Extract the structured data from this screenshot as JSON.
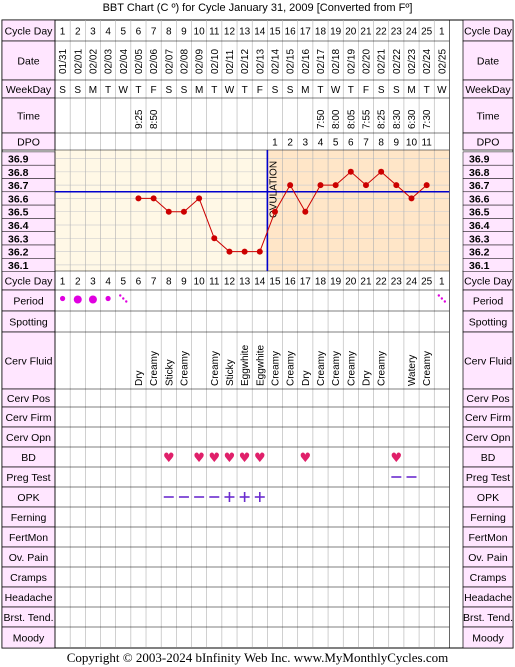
{
  "title": "BBT Chart (C º) for Cycle January 31, 2009  [Converted from Fº]",
  "footer": "Copyright © 2003-2024 bInfinity Web Inc.    www.MyMonthlyCycles.com",
  "colors": {
    "pink_cell": "#ffe6ff",
    "chart_bg_pre": "#fff8e6",
    "chart_bg_post": "#ffe6c8",
    "grid": "#d0d0d0",
    "line": "#cc0000",
    "coverline": "#0000cc",
    "ovulation": "#0000cc",
    "period_dot": "#e000e0",
    "bd_heart": "#e0206a",
    "opk": "#6a2ccf"
  },
  "row_labels": [
    "Cycle Day",
    "Date",
    "WeekDay",
    "Time",
    "DPO",
    "Cycle Day",
    "Period",
    "Spotting",
    "Cerv Fluid",
    "Cerv Pos",
    "Cerv Firm",
    "Cerv Opn",
    "BD",
    "Preg Test",
    "OPK",
    "Ferning",
    "FertMon",
    "Ov. Pain",
    "Cramps",
    "Headache",
    "Brst. Tend.",
    "Moody"
  ],
  "cycle_days": [
    "1",
    "2",
    "3",
    "4",
    "5",
    "6",
    "7",
    "8",
    "9",
    "10",
    "11",
    "12",
    "13",
    "14",
    "15",
    "16",
    "17",
    "18",
    "19",
    "20",
    "21",
    "22",
    "23",
    "24",
    "25",
    "1"
  ],
  "dates": [
    "01/31",
    "02/01",
    "02/02",
    "02/03",
    "02/04",
    "02/05",
    "02/06",
    "02/07",
    "02/08",
    "02/09",
    "02/10",
    "02/11",
    "02/12",
    "02/13",
    "02/14",
    "02/15",
    "02/16",
    "02/17",
    "02/18",
    "02/19",
    "02/20",
    "02/21",
    "02/22",
    "02/23",
    "02/24",
    "02/25"
  ],
  "weekdays": [
    "S",
    "S",
    "M",
    "T",
    "W",
    "T",
    "F",
    "S",
    "S",
    "M",
    "T",
    "W",
    "T",
    "F",
    "S",
    "S",
    "M",
    "T",
    "W",
    "T",
    "F",
    "S",
    "S",
    "M",
    "T",
    "W"
  ],
  "times": [
    "",
    "",
    "",
    "",
    "",
    "9:25",
    "8:50",
    "",
    "",
    "",
    "",
    "",
    "",
    "",
    "",
    "",
    "",
    "7:50",
    "8:00",
    "8:05",
    "7:55",
    "8:25",
    "8:30",
    "6:30",
    "7:30",
    ""
  ],
  "dpo": [
    "",
    "",
    "",
    "",
    "",
    "",
    "",
    "",
    "",
    "",
    "",
    "",
    "",
    "",
    "1",
    "2",
    "3",
    "4",
    "5",
    "6",
    "7",
    "8",
    "9",
    "10",
    "11",
    ""
  ],
  "temp_labels": [
    "36.9",
    "36.8",
    "36.7",
    "36.6",
    "36.5",
    "36.4",
    "36.3",
    "36.2",
    "36.1"
  ],
  "ovulation_label": "OVULATION",
  "chart_data": {
    "type": "line",
    "x": [
      6,
      7,
      8,
      9,
      10,
      11,
      12,
      13,
      14,
      15,
      16,
      17,
      18,
      19,
      20,
      21,
      22,
      23,
      24,
      25
    ],
    "y": [
      36.6,
      36.6,
      36.5,
      36.5,
      36.6,
      36.3,
      36.2,
      36.2,
      36.2,
      36.5,
      36.7,
      36.5,
      36.7,
      36.7,
      36.8,
      36.7,
      36.8,
      36.7,
      36.6,
      36.7
    ],
    "ylim": [
      36.05,
      36.95
    ],
    "coverline": 36.65,
    "ovulation_day": 14
  },
  "period": [
    "dot",
    "dot-large",
    "dot-large",
    "dot",
    "spotting",
    "",
    "",
    "",
    "",
    "",
    "",
    "",
    "",
    "",
    "",
    "",
    "",
    "",
    "",
    "",
    "",
    "",
    "",
    "",
    "",
    "spotting"
  ],
  "cerv_fluid": [
    "",
    "",
    "",
    "",
    "",
    "Dry",
    "Creamy",
    "Sticky",
    "Creamy",
    "",
    "Creamy",
    "Sticky",
    "Eggwhite",
    "Eggwhite",
    "Creamy",
    "Creamy",
    "Dry",
    "Creamy",
    "Creamy",
    "Creamy",
    "Dry",
    "Creamy",
    "",
    "Watery",
    "Creamy",
    ""
  ],
  "bd": [
    "",
    "",
    "",
    "",
    "",
    "",
    "",
    "heart",
    "",
    "heart",
    "heart",
    "heart",
    "heart",
    "heart",
    "",
    "",
    "heart",
    "",
    "",
    "",
    "",
    "",
    "heart",
    "",
    "",
    ""
  ],
  "preg_test": [
    "",
    "",
    "",
    "",
    "",
    "",
    "",
    "",
    "",
    "",
    "",
    "",
    "",
    "",
    "",
    "",
    "",
    "",
    "",
    "",
    "",
    "",
    "neg",
    "neg",
    "",
    ""
  ],
  "opk": [
    "",
    "",
    "",
    "",
    "",
    "",
    "",
    "neg",
    "neg",
    "neg",
    "neg",
    "pos",
    "pos",
    "pos",
    "",
    "",
    "",
    "",
    "",
    "",
    "",
    "",
    "",
    "",
    "",
    ""
  ]
}
